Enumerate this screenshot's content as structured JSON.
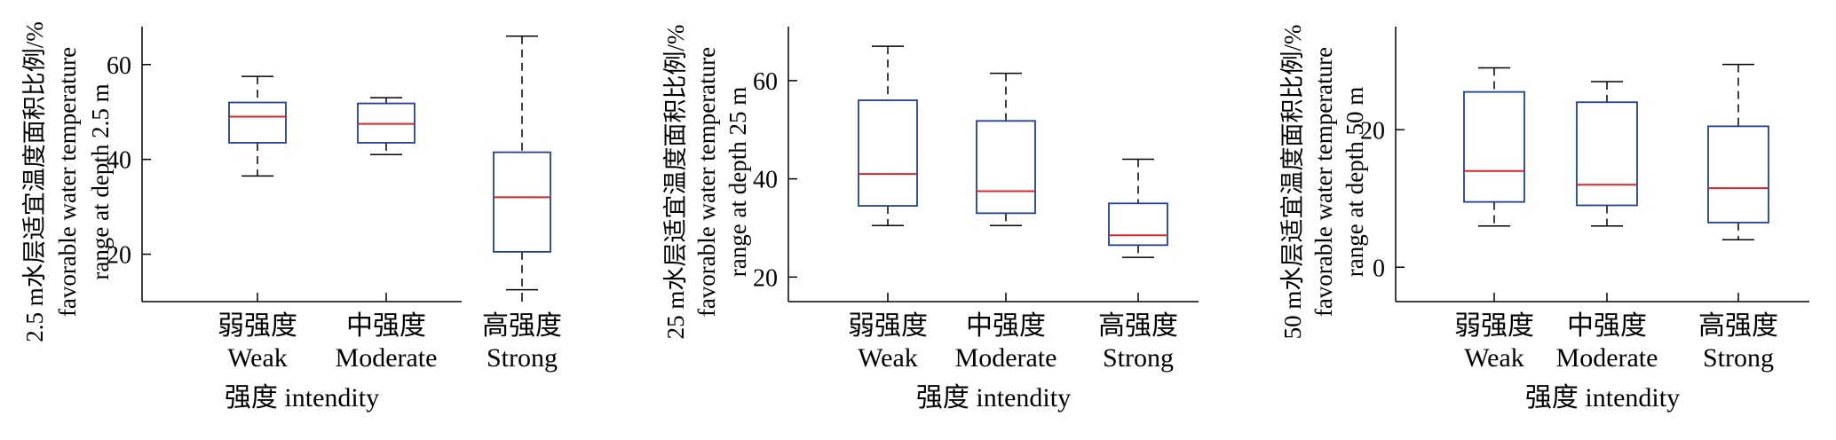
{
  "chart_data": [
    {
      "type": "box",
      "categories_cn": [
        "弱强度",
        "中强度",
        "高强度"
      ],
      "categories_en": [
        "Weak",
        "Moderate",
        "Strong"
      ],
      "xlabel": "强度 intendity",
      "ylabel": [
        "2.5 m水层适宜温度面积比例/%",
        "favorable water temperature",
        "range at depth 2.5 m"
      ],
      "ylim": [
        10,
        68
      ],
      "yticks": [
        20,
        40,
        60
      ],
      "grid": false,
      "boxes": [
        {
          "min": 36.5,
          "q1": 43.5,
          "median": 49.0,
          "q3": 52.0,
          "max": 57.5
        },
        {
          "min": 41.0,
          "q1": 43.5,
          "median": 47.5,
          "q3": 51.8,
          "max": 53.0
        },
        {
          "min": 12.5,
          "q1": 20.5,
          "median": 32.0,
          "q3": 41.5,
          "max": 66.0
        }
      ]
    },
    {
      "type": "box",
      "categories_cn": [
        "弱强度",
        "中强度",
        "高强度"
      ],
      "categories_en": [
        "Weak",
        "Moderate",
        "Strong"
      ],
      "xlabel": "强度 intendity",
      "ylabel": [
        "25 m水层适宜温度面积比例/%",
        "favorable water temperature",
        "range at depth 25 m"
      ],
      "ylim": [
        15,
        71
      ],
      "yticks": [
        20,
        40,
        60
      ],
      "grid": false,
      "boxes": [
        {
          "min": 30.5,
          "q1": 34.5,
          "median": 41.0,
          "q3": 56.0,
          "max": 67.0
        },
        {
          "min": 30.5,
          "q1": 33.0,
          "median": 37.5,
          "q3": 51.8,
          "max": 61.5
        },
        {
          "min": 24.0,
          "q1": 26.5,
          "median": 28.5,
          "q3": 35.0,
          "max": 44.0
        }
      ]
    },
    {
      "type": "box",
      "categories_cn": [
        "弱强度",
        "中强度",
        "高强度"
      ],
      "categories_en": [
        "Weak",
        "Moderate",
        "Strong"
      ],
      "xlabel": "强度 intendity",
      "ylabel": [
        "50 m水层适宜温度面积比例/%",
        "favorable water temperature",
        "range at depth 50 m"
      ],
      "ylim": [
        -5,
        35
      ],
      "yticks": [
        0,
        20
      ],
      "grid": false,
      "boxes": [
        {
          "min": 6.0,
          "q1": 9.5,
          "median": 14.0,
          "q3": 25.5,
          "max": 29.0
        },
        {
          "min": 6.0,
          "q1": 9.0,
          "median": 12.0,
          "q3": 24.0,
          "max": 27.0
        },
        {
          "min": 4.0,
          "q1": 6.5,
          "median": 11.5,
          "q3": 20.5,
          "max": 29.5
        }
      ]
    }
  ],
  "style": {
    "box_color": "#1f3f9a",
    "median_color": "#d62728",
    "whisker_color": "#000000",
    "axis_color": "#000000"
  }
}
